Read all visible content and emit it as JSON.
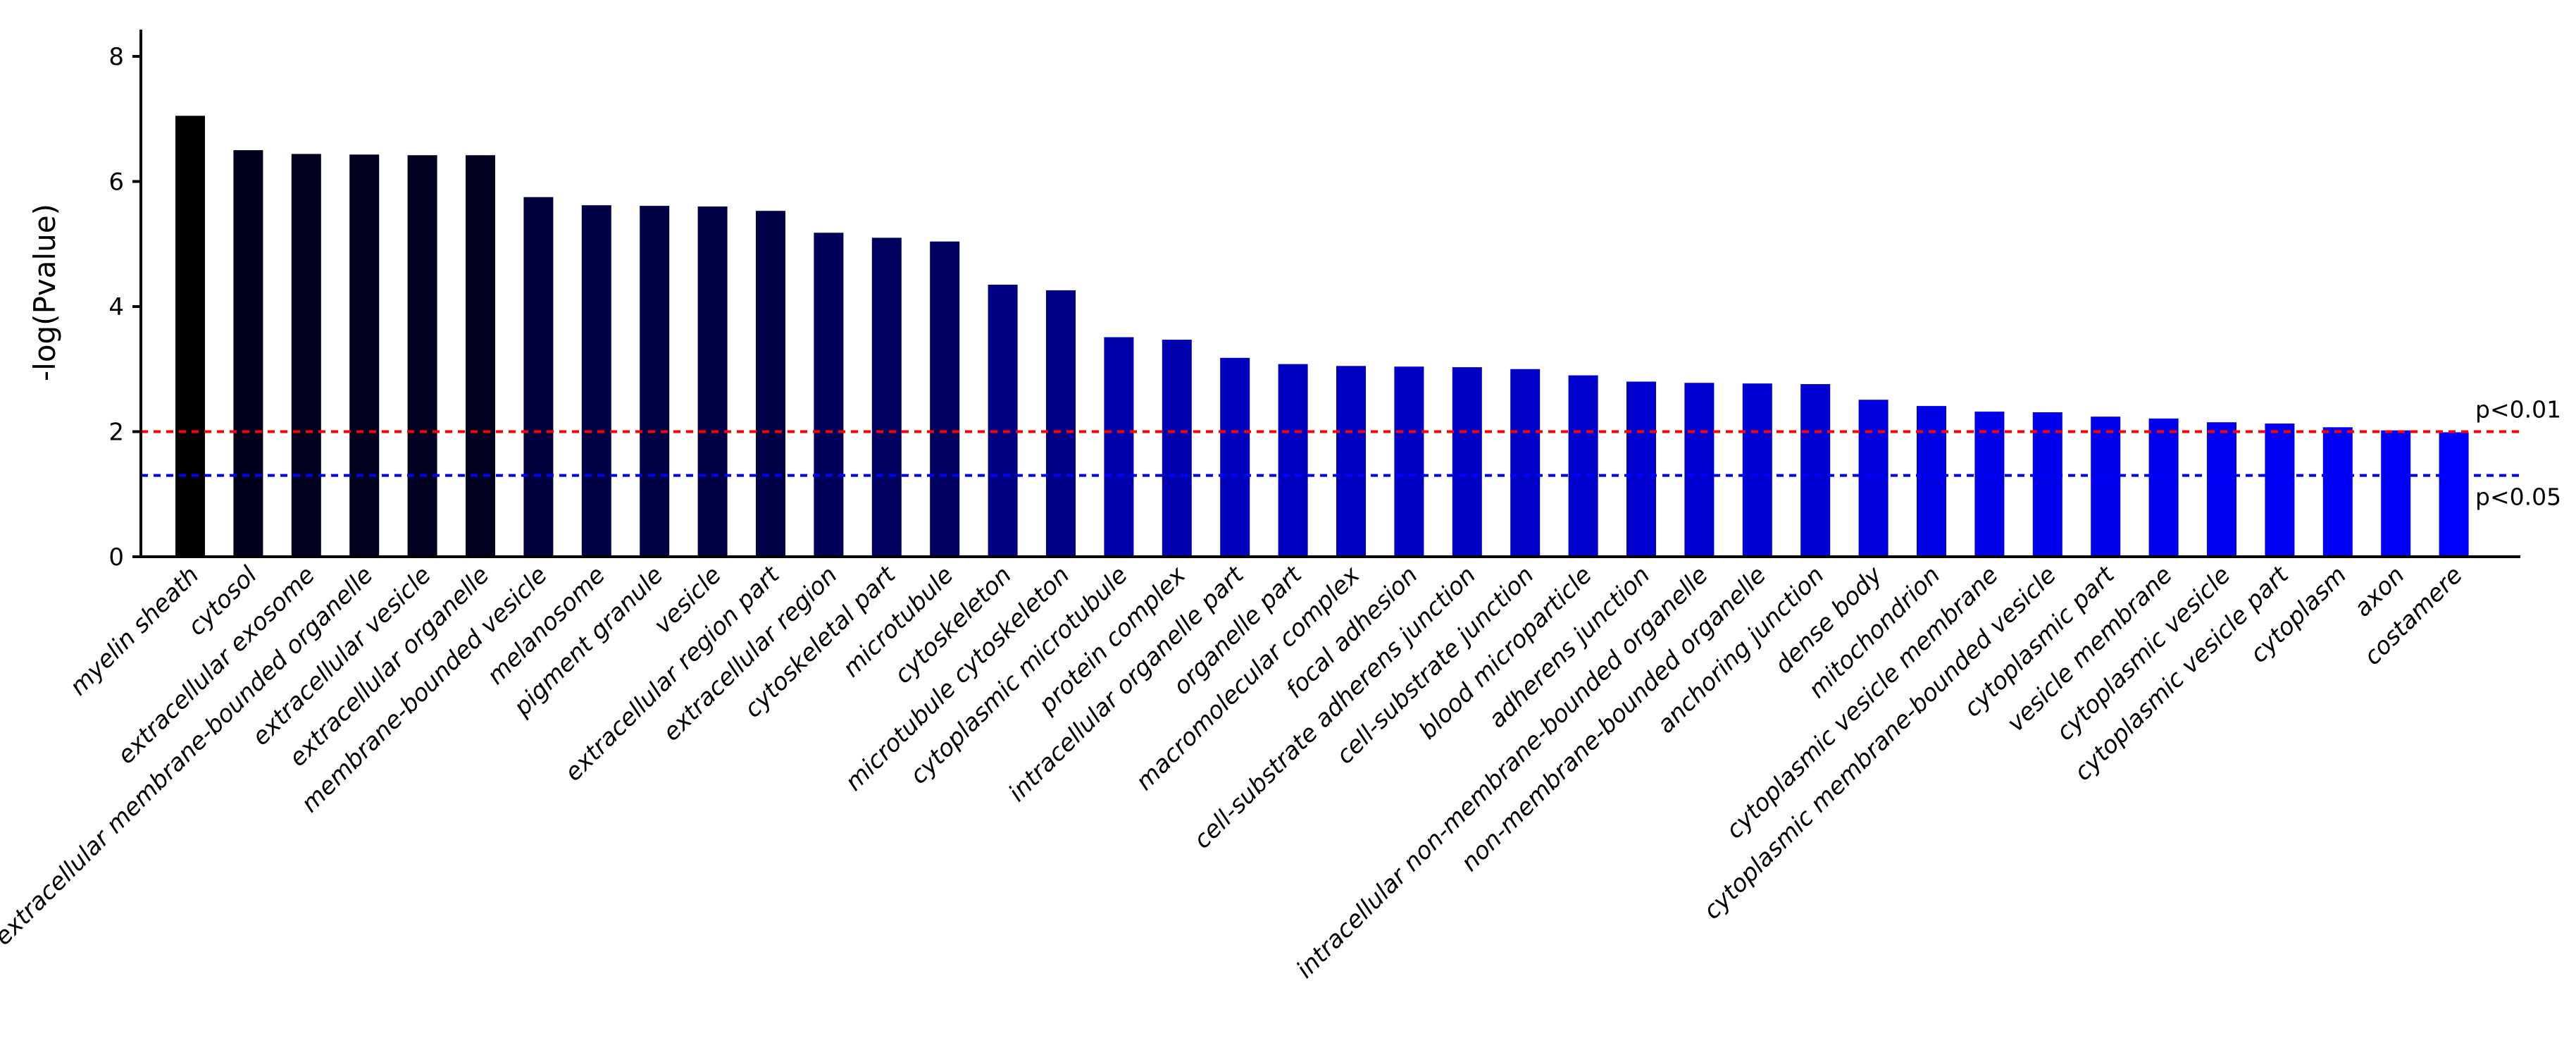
{
  "chart_data": {
    "type": "bar",
    "title": "",
    "xlabel": "",
    "ylabel": "-log(Pvalue)",
    "ylim": [
      0,
      8.5
    ],
    "yticks": [
      0,
      2,
      4,
      6,
      8
    ],
    "grid": false,
    "categories": [
      "myelin sheath",
      "cytosol",
      "extracellular exosome",
      "extracellular membrane-bounded organelle",
      "extracellular vesicle",
      "extracellular organelle",
      "membrane-bounded vesicle",
      "melanosome",
      "pigment granule",
      "vesicle",
      "extracellular region part",
      "extracellular region",
      "cytoskeletal part",
      "microtubule",
      "cytoskeleton",
      "microtubule cytoskeleton",
      "cytoplasmic microtubule",
      "protein complex",
      "intracellular organelle part",
      "organelle part",
      "macromolecular complex",
      "focal adhesion",
      "cell-substrate adherens junction",
      "cell-substrate junction",
      "blood microparticle",
      "adherens junction",
      "intracellular non-membrane-bounded organelle",
      "non-membrane-bounded organelle",
      "anchoring junction",
      "dense body",
      "mitochondrion",
      "cytoplasmic vesicle membrane",
      "cytoplasmic membrane-bounded vesicle",
      "cytoplasmic part",
      "vesicle membrane",
      "cytoplasmic vesicle",
      "cytoplasmic vesicle part",
      "cytoplasm",
      "axon",
      "costamere"
    ],
    "values": [
      7.05,
      6.5,
      6.44,
      6.43,
      6.42,
      6.42,
      5.75,
      5.62,
      5.61,
      5.6,
      5.53,
      5.18,
      5.1,
      5.04,
      4.35,
      4.26,
      3.51,
      3.47,
      3.18,
      3.08,
      3.05,
      3.04,
      3.03,
      3.0,
      2.9,
      2.8,
      2.78,
      2.77,
      2.76,
      2.51,
      2.41,
      2.32,
      2.31,
      2.24,
      2.21,
      2.15,
      2.13,
      2.07,
      2.02,
      1.99
    ],
    "bar_colors": [
      "#000000",
      "#00001c",
      "#00001f",
      "#00001f",
      "#000021",
      "#000021",
      "#00003f",
      "#000044",
      "#000045",
      "#000046",
      "#000049",
      "#00005a",
      "#00005e",
      "#000060",
      "#000083",
      "#000087",
      "#0000ad",
      "#0000ae",
      "#0000bd",
      "#0000c2",
      "#0000c3",
      "#0000c4",
      "#0000c4",
      "#0000c6",
      "#0000cc",
      "#0000d0",
      "#0000d1",
      "#0000d2",
      "#0000d2",
      "#0000df",
      "#0000e5",
      "#0000e9",
      "#0000ea",
      "#0000ed",
      "#0000ef",
      "#0000f2",
      "#0000f3",
      "#0000f6",
      "#0000f8",
      "#0000ff"
    ],
    "thresholds": [
      {
        "label": "p<0.01",
        "value": 2.0,
        "color": "#ff0000"
      },
      {
        "label": "p<0.05",
        "value": 1.3,
        "color": "#0000ff"
      }
    ]
  }
}
